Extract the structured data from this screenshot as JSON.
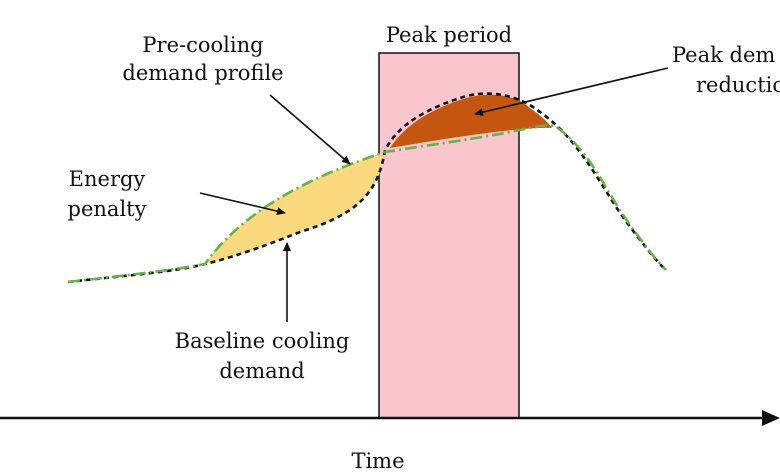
{
  "diagram": {
    "labels": {
      "peak_period": "Peak period",
      "precooling_line1": "Pre-cooling",
      "precooling_line2": "demand profile",
      "peak_reduction_line1": "Peak dem",
      "peak_reduction_line2": "reductio",
      "energy_penalty_line1": "Energy",
      "energy_penalty_line2": "penalty",
      "baseline_line1": "Baseline cooling",
      "baseline_line2": "demand",
      "x_axis": "Time"
    },
    "colors": {
      "peak_box_fill": "#f9c6cd",
      "energy_penalty_fill": "#fbd97e",
      "peak_reduction_fill": "#c4560f",
      "baseline_line": "#111111",
      "precooling_line": "#6ab04c",
      "axis": "#111111"
    }
  }
}
